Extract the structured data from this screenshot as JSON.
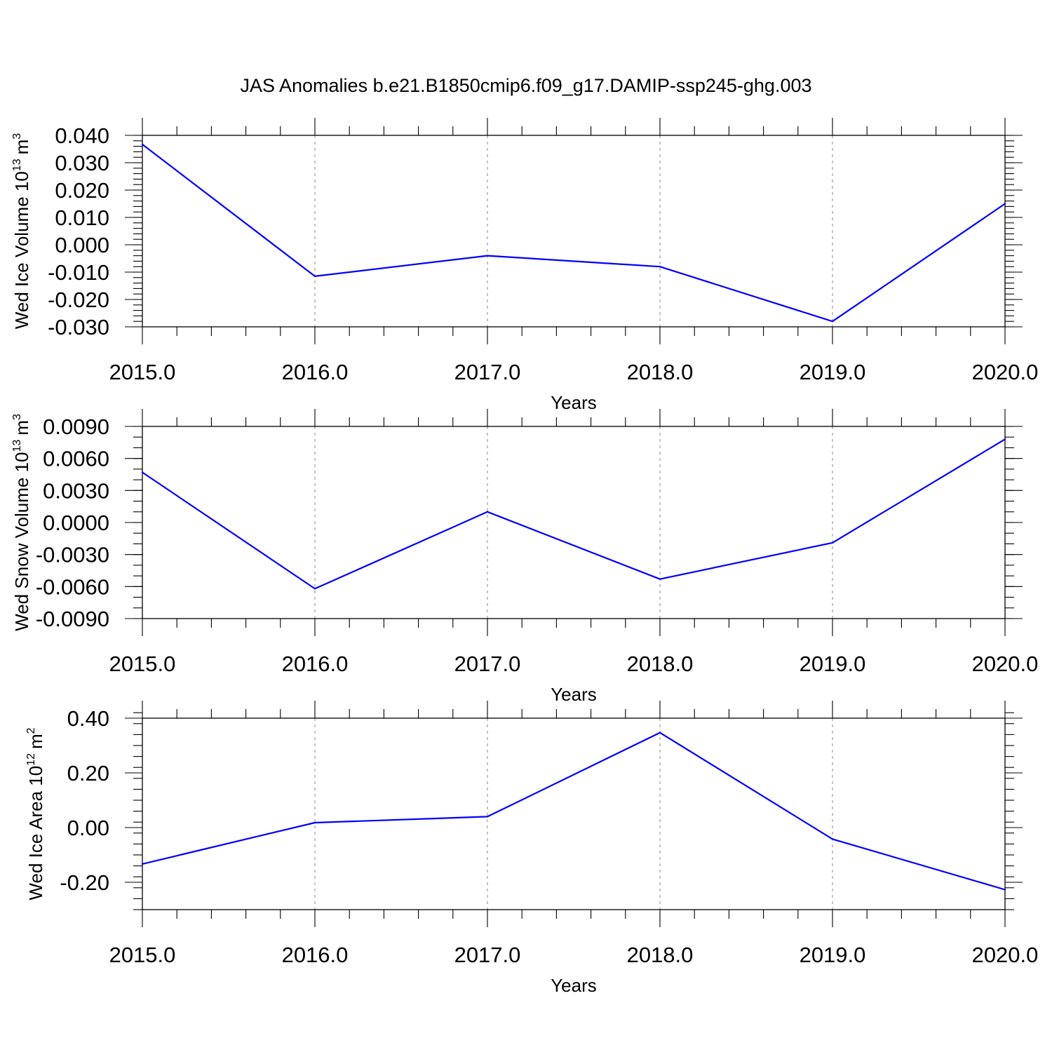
{
  "figure": {
    "title": "JAS Anomalies b.e21.B1850cmip6.f09_g17.DAMIP-ssp245-ghg.003"
  },
  "colors": {
    "series": "#0000ff",
    "grid": "#8a8a8a"
  },
  "chart_data": [
    {
      "type": "line",
      "xlabel": "Years",
      "ylabel": "Wed Ice Volume 10",
      "ylabel_sup1": "13",
      "ylabel_unit": "m",
      "ylabel_sup2": "3",
      "xlim": [
        2015,
        2020
      ],
      "ylim": [
        -0.03,
        0.04
      ],
      "x_ticks": [
        2015,
        2016,
        2017,
        2018,
        2019,
        2020
      ],
      "x_tick_labels": [
        "2015.0",
        "2016.0",
        "2017.0",
        "2018.0",
        "2019.0",
        "2020.0"
      ],
      "y_ticks": [
        -0.03,
        -0.02,
        -0.01,
        0.0,
        0.01,
        0.02,
        0.03,
        0.04
      ],
      "y_tick_labels": [
        "-0.030",
        "-0.020",
        "-0.010",
        "0.000",
        "0.010",
        "0.020",
        "0.030",
        "0.040"
      ],
      "y_minor_step": 0.002,
      "x": [
        2015,
        2016,
        2017,
        2018,
        2019,
        2020
      ],
      "values": [
        0.0367,
        -0.0115,
        -0.004,
        -0.008,
        -0.028,
        0.015
      ]
    },
    {
      "type": "line",
      "xlabel": "Years",
      "ylabel": "Wed Snow Volume 10",
      "ylabel_sup1": "13",
      "ylabel_unit": "m",
      "ylabel_sup2": "3",
      "xlim": [
        2015,
        2020
      ],
      "ylim": [
        -0.009,
        0.009
      ],
      "x_ticks": [
        2015,
        2016,
        2017,
        2018,
        2019,
        2020
      ],
      "x_tick_labels": [
        "2015.0",
        "2016.0",
        "2017.0",
        "2018.0",
        "2019.0",
        "2020.0"
      ],
      "y_ticks": [
        -0.009,
        -0.006,
        -0.003,
        0.0,
        0.003,
        0.006,
        0.009
      ],
      "y_tick_labels": [
        "-0.0090",
        "-0.0060",
        "-0.0030",
        "0.0000",
        "0.0030",
        "0.0060",
        "0.0090"
      ],
      "y_minor_step": 0.001,
      "x": [
        2015,
        2016,
        2017,
        2018,
        2019,
        2020
      ],
      "values": [
        0.0047,
        -0.0062,
        0.001,
        -0.0053,
        -0.0019,
        0.0078
      ]
    },
    {
      "type": "line",
      "xlabel": "Years",
      "ylabel": "Wed Ice Area 10",
      "ylabel_sup1": "12",
      "ylabel_unit": "m",
      "ylabel_sup2": "2",
      "xlim": [
        2015,
        2020
      ],
      "ylim": [
        -0.3,
        0.4
      ],
      "x_ticks": [
        2015,
        2016,
        2017,
        2018,
        2019,
        2020
      ],
      "x_tick_labels": [
        "2015.0",
        "2016.0",
        "2017.0",
        "2018.0",
        "2019.0",
        "2020.0"
      ],
      "y_ticks": [
        -0.2,
        0.0,
        0.2,
        0.4
      ],
      "y_tick_labels": [
        "-0.20",
        "0.00",
        "0.20",
        "0.40"
      ],
      "y_minor_step": 0.04,
      "x": [
        2015,
        2016,
        2017,
        2018,
        2019,
        2020
      ],
      "values": [
        -0.133,
        0.018,
        0.04,
        0.347,
        -0.042,
        -0.227
      ]
    }
  ]
}
